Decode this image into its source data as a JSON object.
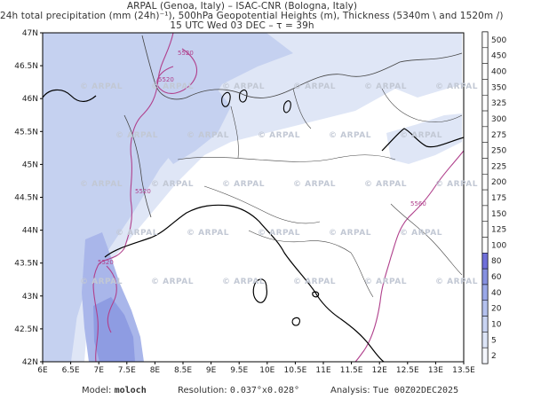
{
  "header": {
    "line1": "ARPAL (Genoa, Italy)  –  ISAC-CNR (Bologna, Italy)",
    "line2": "24h total precipitation (mm (24h)⁻¹), 500hPa Geopotential Heights (m), Thickness (5340m \\ and 1520m /)",
    "line3": "15 UTC Wed 03 DEC  –  τ = 39h"
  },
  "map": {
    "lat_labels": [
      "47N",
      "46.5N",
      "46N",
      "45.5N",
      "45N",
      "44.5N",
      "44N",
      "43.5N",
      "43N",
      "42.5N",
      "42N"
    ],
    "lon_labels": [
      "6E",
      "6.5E",
      "7E",
      "7.5E",
      "8E",
      "8.5E",
      "9E",
      "9.5E",
      "10E",
      "10.5E",
      "11E",
      "11.5E",
      "12E",
      "12.5E",
      "13E",
      "13.5E"
    ],
    "watermark_text": "© ARPAL",
    "contour_labels": [
      "5520",
      "5520",
      "5520",
      "5520",
      "5560"
    ],
    "colors": {
      "precip_light": "#dfe6f6",
      "precip_mid": "#c5d1f0",
      "precip_dark": "#a9b6ea",
      "precip_heavy": "#8e9ce2",
      "contour": "#b0408c",
      "coast": "#000000",
      "border": "#444444"
    }
  },
  "colorbar": {
    "labels": [
      "500",
      "450",
      "400",
      "350",
      "325",
      "300",
      "275",
      "250",
      "225",
      "200",
      "175",
      "150",
      "125",
      "100",
      "80",
      "60",
      "40",
      "20",
      "10",
      "5",
      "2"
    ],
    "colors": [
      "#ffffff",
      "#ffffff",
      "#ffffff",
      "#ffffff",
      "#ffffff",
      "#ffffff",
      "#ffffff",
      "#ffffff",
      "#ffffff",
      "#ffffff",
      "#ffffff",
      "#ffffff",
      "#ffffff",
      "#ffffff",
      "#6f6fd9",
      "#8590e0",
      "#9aa8e8",
      "#b4c1ee",
      "#c9d4f2",
      "#dde5f7",
      "#f4f6fc"
    ]
  },
  "footer": {
    "model_label": "Model:",
    "model_value": "moloch",
    "resolution_label": "Resolution:",
    "resolution_value": "0.037°x0.028°",
    "analysis_label": "Analysis:",
    "analysis_value": "Tue 00Z02DEC2025"
  }
}
